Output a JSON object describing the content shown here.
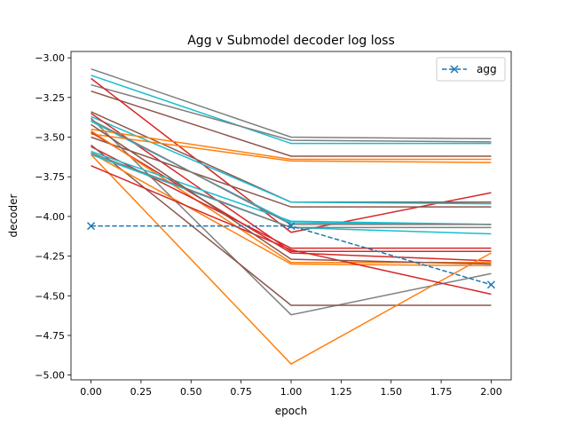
{
  "chart_data": {
    "type": "line",
    "title": "Agg v Submodel decoder log loss",
    "xlabel": "epoch",
    "ylabel": "decoder",
    "x": [
      0,
      1,
      2
    ],
    "xlim": [
      -0.1,
      2.1
    ],
    "ylim": [
      -5.03,
      -2.96
    ],
    "xticks": [
      0.0,
      0.25,
      0.5,
      0.75,
      1.0,
      1.25,
      1.5,
      1.75,
      2.0
    ],
    "xtick_labels": [
      "0.00",
      "0.25",
      "0.50",
      "0.75",
      "1.00",
      "1.25",
      "1.50",
      "1.75",
      "2.00"
    ],
    "yticks": [
      -3.0,
      -3.25,
      -3.5,
      -3.75,
      -4.0,
      -4.25,
      -4.5,
      -4.75,
      -5.0
    ],
    "ytick_labels": [
      "−3.00",
      "−3.25",
      "−3.50",
      "−3.75",
      "−4.00",
      "−4.25",
      "−4.50",
      "−4.75",
      "−5.00"
    ],
    "grid": false,
    "legend": {
      "position": "top-right",
      "entries": [
        "agg"
      ]
    },
    "series": [
      {
        "name": "agg",
        "color": "#1f77b4",
        "dashed": true,
        "marker": "x",
        "values": [
          -4.06,
          -4.06,
          -4.43
        ]
      },
      {
        "color": "#7f7f7f",
        "values": [
          -3.07,
          -3.5,
          -3.51
        ]
      },
      {
        "color": "#17becf",
        "values": [
          -3.11,
          -3.54,
          -3.54
        ]
      },
      {
        "color": "#7f7f7f",
        "values": [
          -3.17,
          -3.52,
          -3.53
        ]
      },
      {
        "color": "#8c564b",
        "values": [
          -3.21,
          -3.62,
          -3.62
        ]
      },
      {
        "color": "#d62728",
        "values": [
          -3.13,
          -4.1,
          -3.85
        ]
      },
      {
        "color": "#8c564b",
        "values": [
          -3.34,
          -3.91,
          -3.91
        ]
      },
      {
        "color": "#17becf",
        "values": [
          -3.37,
          -3.91,
          -3.92
        ]
      },
      {
        "color": "#d62728",
        "values": [
          -3.35,
          -4.22,
          -4.22
        ]
      },
      {
        "color": "#7f7f7f",
        "values": [
          -3.38,
          -4.62,
          -4.36
        ]
      },
      {
        "color": "#17becf",
        "values": [
          -3.4,
          -4.04,
          -4.05
        ]
      },
      {
        "color": "#ff7f0e",
        "values": [
          -3.45,
          -3.64,
          -3.64
        ]
      },
      {
        "color": "#ff7f0e",
        "values": [
          -3.48,
          -3.65,
          -3.66
        ]
      },
      {
        "color": "#d62728",
        "values": [
          -3.47,
          -4.23,
          -4.28
        ]
      },
      {
        "color": "#8c564b",
        "values": [
          -3.5,
          -3.94,
          -3.94
        ]
      },
      {
        "color": "#ff7f0e",
        "values": [
          -3.46,
          -4.29,
          -4.29
        ]
      },
      {
        "color": "#d62728",
        "values": [
          -3.56,
          -4.2,
          -4.2
        ]
      },
      {
        "color": "#8c564b",
        "values": [
          -3.55,
          -4.56,
          -4.56
        ]
      },
      {
        "color": "#17becf",
        "values": [
          -3.59,
          -4.03,
          -4.05
        ]
      },
      {
        "color": "#ff7f0e",
        "values": [
          -3.6,
          -4.3,
          -4.31
        ]
      },
      {
        "color": "#17becf",
        "values": [
          -3.61,
          -4.07,
          -4.11
        ]
      },
      {
        "color": "#ff7f0e",
        "values": [
          -3.61,
          -4.93,
          -4.23
        ]
      },
      {
        "color": "#7f7f7f",
        "values": [
          -3.6,
          -4.07,
          -4.07
        ]
      },
      {
        "color": "#d62728",
        "values": [
          -3.68,
          -4.21,
          -4.49
        ]
      },
      {
        "color": "#7f7f7f",
        "values": [
          -3.39,
          -4.05,
          -4.05
        ]
      },
      {
        "color": "#8c564b",
        "values": [
          -3.42,
          -4.27,
          -4.3
        ]
      }
    ]
  }
}
